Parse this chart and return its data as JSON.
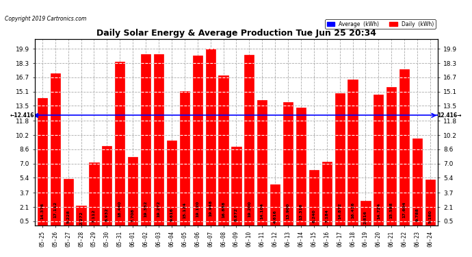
{
  "title": "Daily Solar Energy & Average Production Tue Jun 25 20:34",
  "copyright": "Copyright 2019 Cartronics.com",
  "average_value": 12.416,
  "bar_color": "#FF0000",
  "average_line_color": "#0000FF",
  "background_color": "#FFFFFF",
  "grid_color": "#AAAAAA",
  "categories": [
    "05-25",
    "05-26",
    "05-27",
    "05-28",
    "05-29",
    "05-30",
    "05-31",
    "06-01",
    "06-02",
    "06-03",
    "06-04",
    "06-05",
    "06-06",
    "06-07",
    "06-08",
    "06-09",
    "06-10",
    "06-11",
    "06-12",
    "06-13",
    "06-14",
    "06-15",
    "06-16",
    "06-17",
    "06-18",
    "06-19",
    "06-20",
    "06-21",
    "06-22",
    "06-23",
    "06-24"
  ],
  "values": [
    14.376,
    17.112,
    5.228,
    2.272,
    7.112,
    8.932,
    18.44,
    7.708,
    19.332,
    19.272,
    9.616,
    15.124,
    19.12,
    19.948,
    16.888,
    8.872,
    19.2,
    14.104,
    4.616,
    13.9,
    13.316,
    6.24,
    7.184,
    14.872,
    16.416,
    2.816,
    14.724,
    15.588,
    17.604,
    9.788,
    5.18
  ],
  "yticks": [
    0.5,
    2.1,
    3.7,
    5.4,
    7.0,
    8.6,
    10.2,
    11.8,
    13.5,
    15.1,
    16.7,
    18.3,
    19.9
  ],
  "legend_avg_label": "Average  (kWh)",
  "legend_daily_label": "Daily  (kWh)"
}
